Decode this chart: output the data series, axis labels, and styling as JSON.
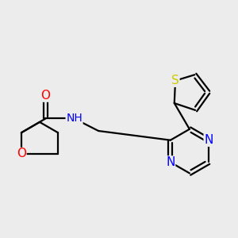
{
  "background_color": "#ececec",
  "bond_color": "#000000",
  "atom_colors": {
    "O": "#ff0000",
    "N": "#0000ff",
    "S": "#cccc00",
    "C": "#000000",
    "H": "#555555"
  },
  "figsize": [
    3.0,
    3.0
  ],
  "dpi": 100
}
